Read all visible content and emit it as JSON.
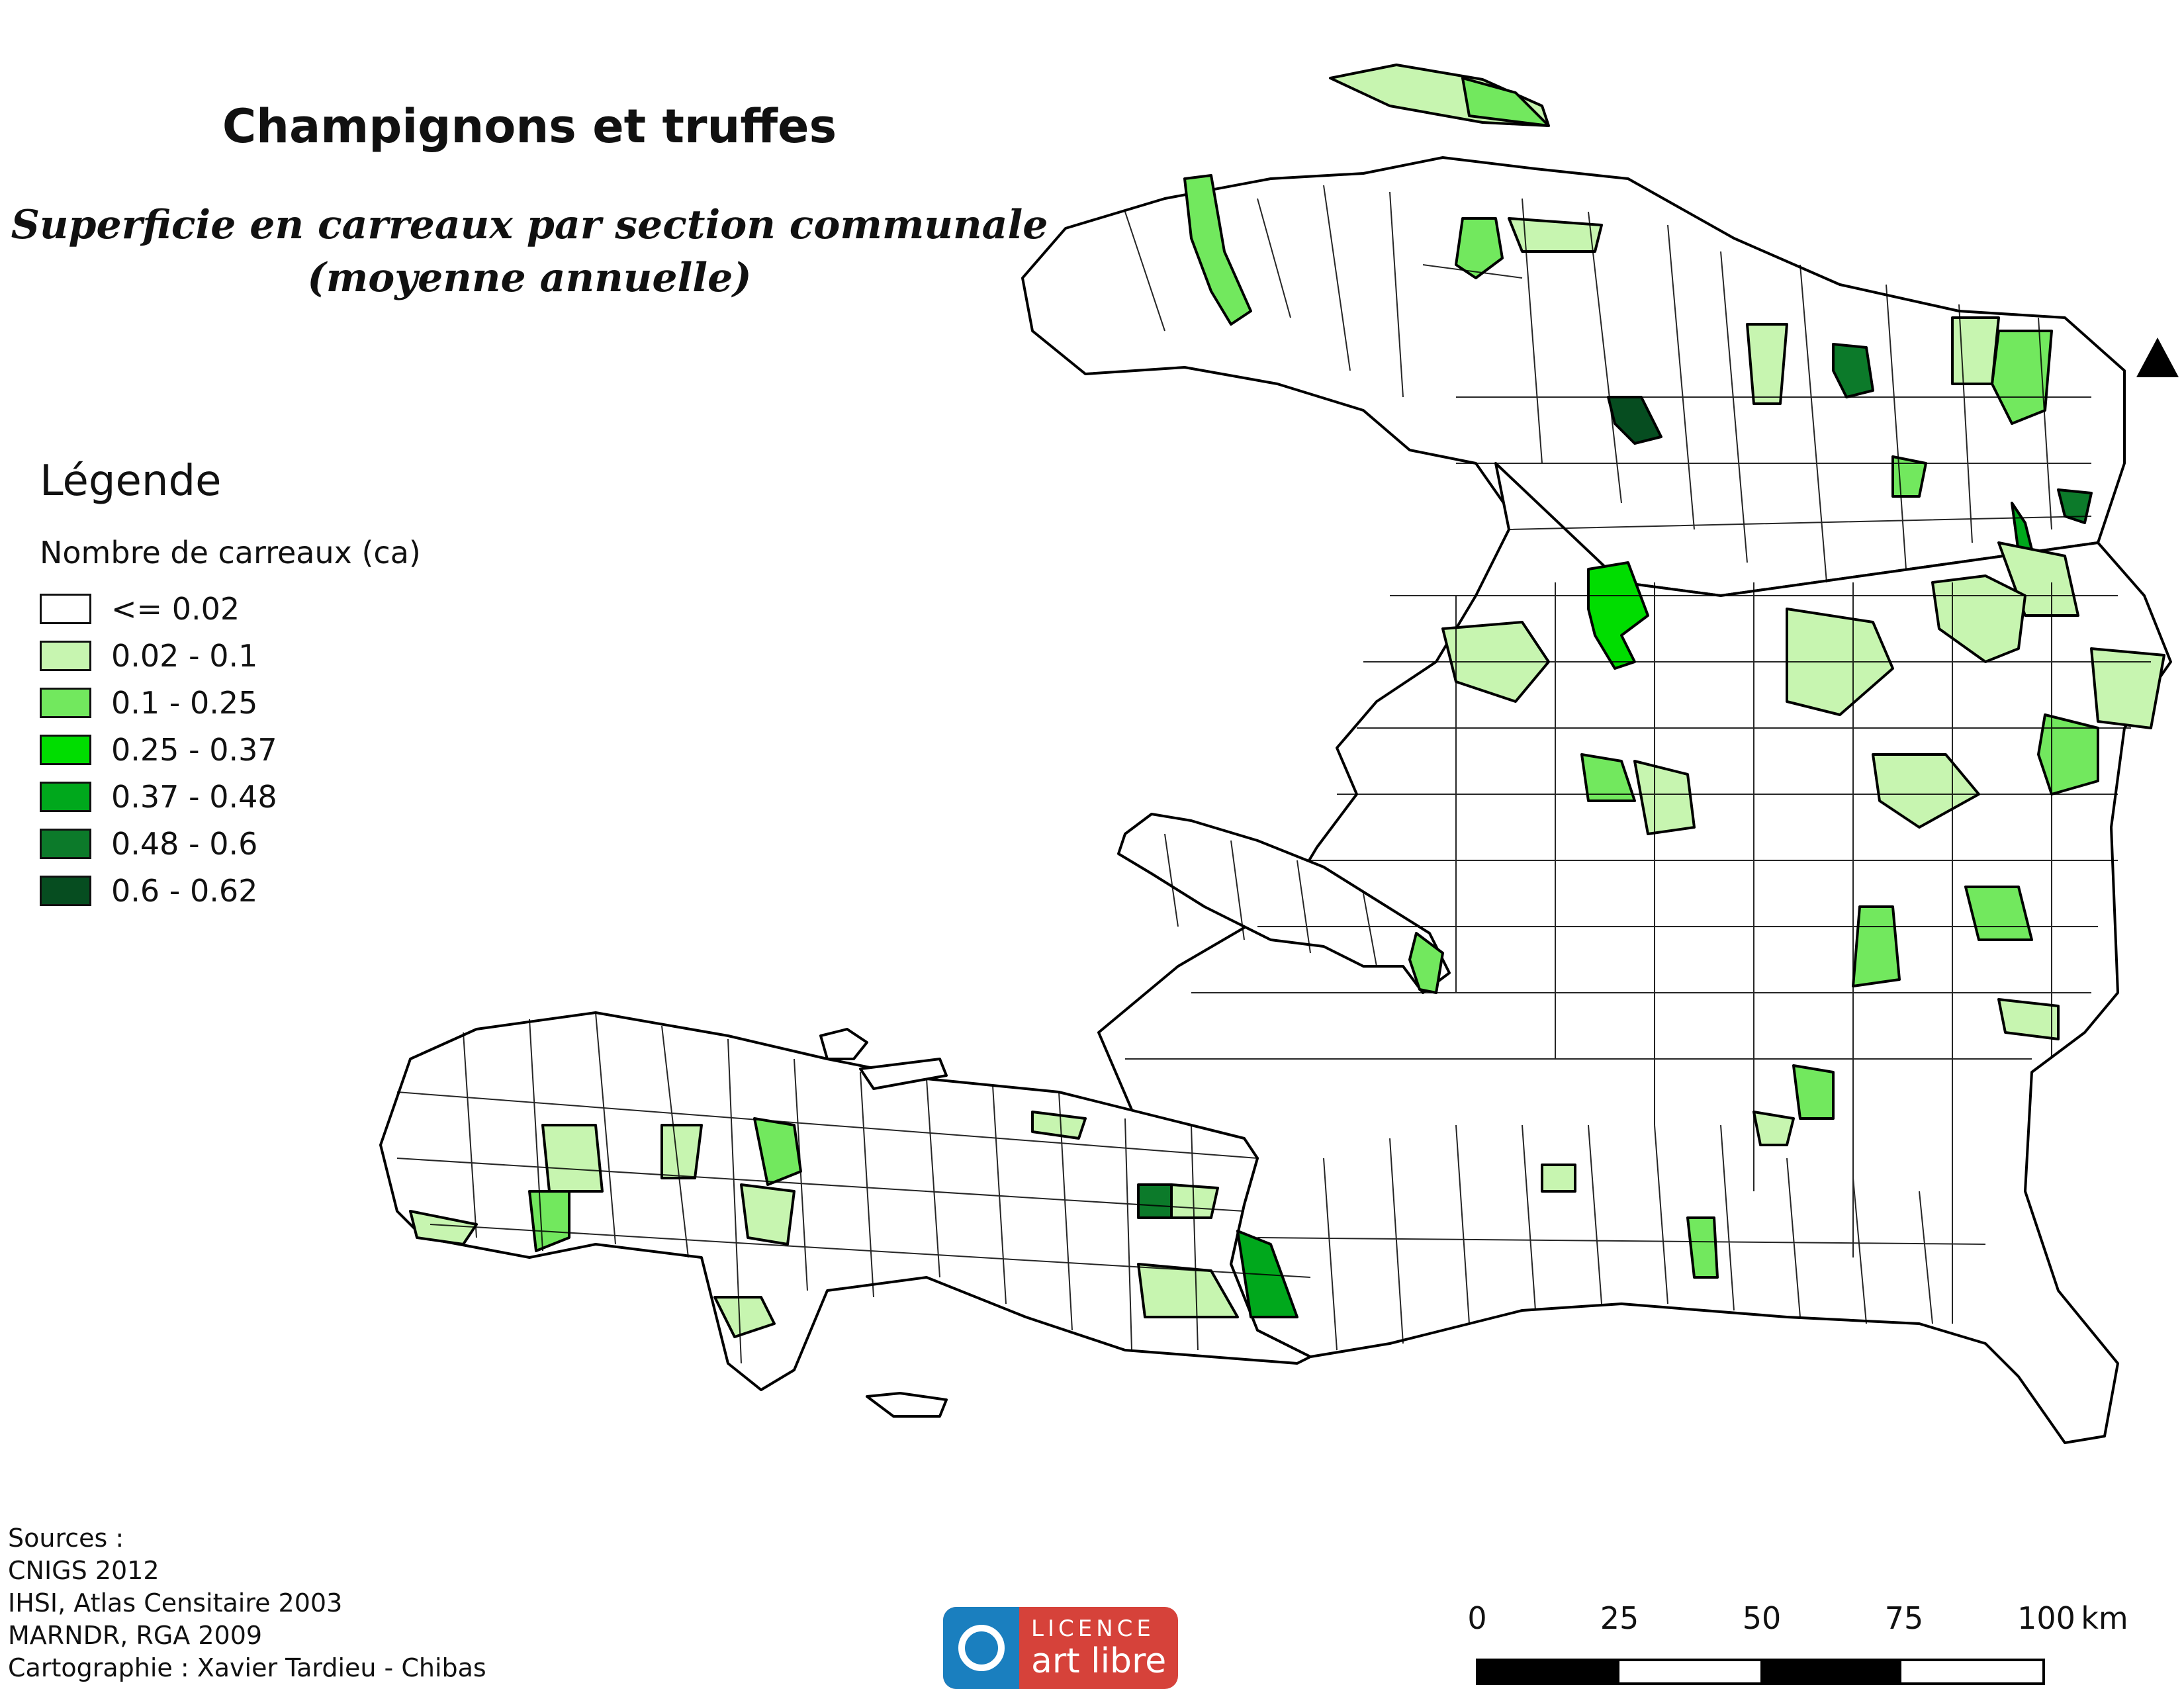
{
  "title": "Champignons et truffes",
  "subtitle_line1": "Superficie en carreaux par section communale",
  "subtitle_line2": "(moyenne annuelle)",
  "legend": {
    "title": "Légende",
    "subtitle": "Nombre de carreaux (ca)",
    "classes": [
      {
        "label": "<= 0.02",
        "color": "#ffffff"
      },
      {
        "label": "0.02 - 0.1",
        "color": "#c7f5b0"
      },
      {
        "label": "0.1 - 0.25",
        "color": "#72e85e"
      },
      {
        "label": "0.25 - 0.37",
        "color": "#00dd00"
      },
      {
        "label": "0.37 - 0.48",
        "color": "#00a81c"
      },
      {
        "label": "0.48 - 0.6",
        "color": "#0c7a2a"
      },
      {
        "label": "0.6 - 0.62",
        "color": "#064d20"
      }
    ]
  },
  "sources": {
    "heading": "Sources :",
    "lines": [
      "CNIGS 2012",
      "IHSI, Atlas Censitaire 2003",
      "MARNDR, RGA 2009",
      "Cartographie : Xavier Tardieu - Chibas"
    ]
  },
  "license": {
    "top": "LICENCE",
    "bottom": "art libre"
  },
  "scale": {
    "ticks": [
      "0",
      "25",
      "50",
      "75",
      "100"
    ],
    "unit": "km"
  },
  "north_arrow": "north-arrow-icon"
}
